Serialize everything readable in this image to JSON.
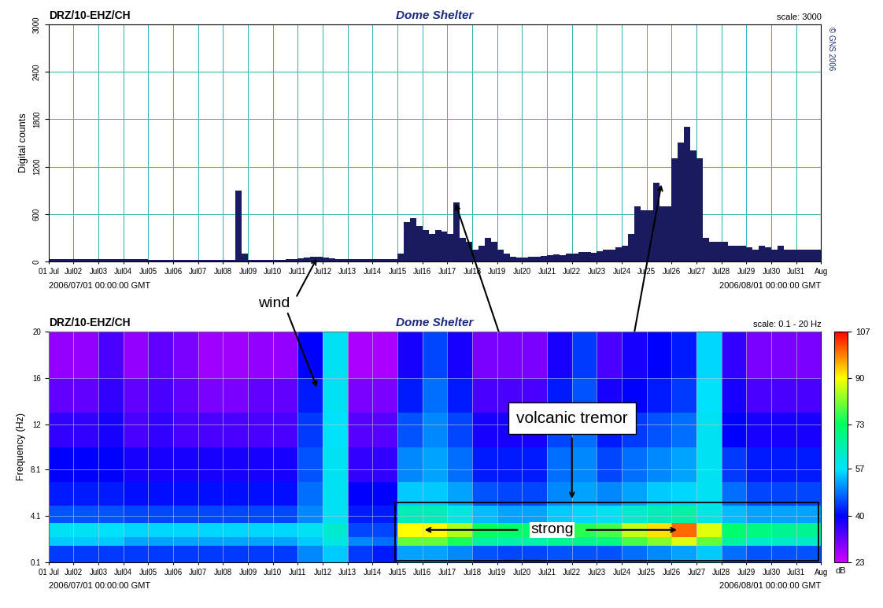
{
  "chart_data": [
    {
      "type": "bar",
      "station": "DRZ/10-EHZ/CH",
      "title": "Dome Shelter",
      "scale_label": "scale: 3000",
      "copyright": "© GNS 2006",
      "ylabel": "Digital counts",
      "start_label": "2006/07/01 00:00:00 GMT",
      "end_label": "2006/08/01 00:00:00 GMT",
      "color": "#1a1a5e",
      "grid": true,
      "xlim": [
        0,
        31
      ],
      "ylim": [
        0,
        3000
      ],
      "yticks": [
        0,
        600,
        1200,
        1800,
        2400,
        3000
      ],
      "xticks": [
        {
          "value": 0,
          "label": "01 Jul"
        },
        {
          "value": 1,
          "label": "Jul02"
        },
        {
          "value": 2,
          "label": "Jul03"
        },
        {
          "value": 3,
          "label": "Jul04"
        },
        {
          "value": 4,
          "label": "Jul05"
        },
        {
          "value": 5,
          "label": "Jul06"
        },
        {
          "value": 6,
          "label": "Jul07"
        },
        {
          "value": 7,
          "label": "Jul08"
        },
        {
          "value": 8,
          "label": "Jul09"
        },
        {
          "value": 9,
          "label": "Jul10"
        },
        {
          "value": 10,
          "label": "Jul11"
        },
        {
          "value": 11,
          "label": "Jul12"
        },
        {
          "value": 12,
          "label": "Jul13"
        },
        {
          "value": 13,
          "label": "Jul14"
        },
        {
          "value": 14,
          "label": "Jul15"
        },
        {
          "value": 15,
          "label": "Jul16"
        },
        {
          "value": 16,
          "label": "Jul17"
        },
        {
          "value": 17,
          "label": "Jul18"
        },
        {
          "value": 18,
          "label": "Jul19"
        },
        {
          "value": 19,
          "label": "Jul20"
        },
        {
          "value": 20,
          "label": "Jul21"
        },
        {
          "value": 21,
          "label": "Jul22"
        },
        {
          "value": 22,
          "label": "Jul23"
        },
        {
          "value": 23,
          "label": "Jul24"
        },
        {
          "value": 24,
          "label": "Jul25"
        },
        {
          "value": 25,
          "label": "Jul26"
        },
        {
          "value": 26,
          "label": "Jul27"
        },
        {
          "value": 27,
          "label": "Jul28"
        },
        {
          "value": 28,
          "label": "Jul29"
        },
        {
          "value": 29,
          "label": "Jul30"
        },
        {
          "value": 30,
          "label": "Jul31"
        },
        {
          "value": 31,
          "label": "Aug"
        }
      ],
      "x": [
        0,
        0.25,
        0.5,
        0.75,
        1,
        1.25,
        1.5,
        1.75,
        2,
        2.25,
        2.5,
        2.75,
        3,
        3.25,
        3.5,
        3.75,
        4,
        4.25,
        4.5,
        4.75,
        5,
        5.25,
        5.5,
        5.75,
        6,
        6.25,
        6.5,
        6.75,
        7,
        7.25,
        7.5,
        7.75,
        8,
        8.25,
        8.5,
        8.75,
        9,
        9.25,
        9.5,
        9.75,
        10,
        10.25,
        10.5,
        10.75,
        11,
        11.25,
        11.5,
        11.75,
        12,
        12.25,
        12.5,
        12.75,
        13,
        13.25,
        13.5,
        13.75,
        14,
        14.25,
        14.5,
        14.75,
        15,
        15.25,
        15.5,
        15.75,
        16,
        16.25,
        16.5,
        16.75,
        17,
        17.25,
        17.5,
        17.75,
        18,
        18.25,
        18.5,
        18.75,
        19,
        19.25,
        19.5,
        19.75,
        20,
        20.25,
        20.5,
        20.75,
        21,
        21.25,
        21.5,
        21.75,
        22,
        22.25,
        22.5,
        22.75,
        23,
        23.25,
        23.5,
        23.75,
        24,
        24.25,
        24.5,
        24.75,
        25,
        25.25,
        25.5,
        25.75,
        26,
        26.25,
        26.5,
        26.75,
        27,
        27.25,
        27.5,
        27.75,
        28,
        28.25,
        28.5,
        28.75,
        29,
        29.25,
        29.5,
        29.75,
        30,
        30.25,
        30.5,
        30.75
      ],
      "values": [
        30,
        30,
        30,
        30,
        25,
        25,
        25,
        25,
        25,
        25,
        25,
        25,
        25,
        25,
        25,
        25,
        20,
        20,
        20,
        20,
        20,
        20,
        20,
        20,
        20,
        20,
        20,
        20,
        20,
        20,
        900,
        100,
        20,
        20,
        20,
        20,
        20,
        20,
        25,
        30,
        40,
        50,
        60,
        60,
        50,
        40,
        30,
        30,
        25,
        25,
        25,
        25,
        25,
        25,
        25,
        25,
        100,
        500,
        550,
        450,
        400,
        350,
        400,
        380,
        350,
        750,
        300,
        250,
        150,
        200,
        300,
        250,
        150,
        100,
        60,
        50,
        50,
        60,
        60,
        70,
        80,
        90,
        80,
        100,
        100,
        120,
        120,
        110,
        130,
        150,
        150,
        180,
        200,
        350,
        700,
        650,
        650,
        1000,
        700,
        700,
        1300,
        1500,
        1700,
        1400,
        1300,
        300,
        250,
        250,
        250,
        200,
        200,
        200,
        180,
        150,
        200,
        180,
        150,
        200,
        150,
        150,
        150,
        150,
        150,
        150
      ]
    },
    {
      "type": "heatmap",
      "station": "DRZ/10-EHZ/CH",
      "title": "Dome Shelter",
      "scale_label": "scale: 0.1 - 20 Hz",
      "ylabel": "Frequency (Hz)",
      "start_label": "2006/07/01 00:00:00 GMT",
      "end_label": "2006/08/01 00:00:00 GMT",
      "grid": true,
      "xlim": [
        0,
        31
      ],
      "ylim": [
        0.1,
        20
      ],
      "yticks": [
        0.1,
        4.1,
        8.1,
        12,
        16,
        20
      ],
      "xticks": [
        {
          "value": 0,
          "label": "01 Jul"
        },
        {
          "value": 1,
          "label": "Jul02"
        },
        {
          "value": 2,
          "label": "Jul03"
        },
        {
          "value": 3,
          "label": "Jul04"
        },
        {
          "value": 4,
          "label": "Jul05"
        },
        {
          "value": 5,
          "label": "Jul06"
        },
        {
          "value": 6,
          "label": "Jul07"
        },
        {
          "value": 7,
          "label": "Jul08"
        },
        {
          "value": 8,
          "label": "Jul09"
        },
        {
          "value": 9,
          "label": "Jul10"
        },
        {
          "value": 10,
          "label": "Jul11"
        },
        {
          "value": 11,
          "label": "Jul12"
        },
        {
          "value": 12,
          "label": "Jul13"
        },
        {
          "value": 13,
          "label": "Jul14"
        },
        {
          "value": 14,
          "label": "Jul15"
        },
        {
          "value": 15,
          "label": "Jul16"
        },
        {
          "value": 16,
          "label": "Jul17"
        },
        {
          "value": 17,
          "label": "Jul18"
        },
        {
          "value": 18,
          "label": "Jul19"
        },
        {
          "value": 19,
          "label": "Jul20"
        },
        {
          "value": 20,
          "label": "Jul21"
        },
        {
          "value": 21,
          "label": "Jul22"
        },
        {
          "value": 22,
          "label": "Jul23"
        },
        {
          "value": 23,
          "label": "Jul24"
        },
        {
          "value": 24,
          "label": "Jul25"
        },
        {
          "value": 25,
          "label": "Jul26"
        },
        {
          "value": 26,
          "label": "Jul27"
        },
        {
          "value": 27,
          "label": "Jul28"
        },
        {
          "value": 28,
          "label": "Jul29"
        },
        {
          "value": 29,
          "label": "Jul30"
        },
        {
          "value": 30,
          "label": "Jul31"
        },
        {
          "value": 31,
          "label": "Aug"
        }
      ],
      "x_edges": [
        0,
        1,
        2,
        3,
        4,
        5,
        6,
        7,
        8,
        9,
        10,
        11,
        12,
        13,
        14,
        15,
        16,
        17,
        18,
        19,
        20,
        21,
        22,
        23,
        24,
        25,
        26,
        27,
        28,
        29,
        30,
        31
      ],
      "y_edges": [
        0.1,
        1.5,
        2.3,
        3.5,
        5,
        7,
        10,
        13,
        16,
        20
      ],
      "cells": [
        [
          44,
          44,
          44,
          44,
          44,
          44,
          44,
          44,
          44,
          44,
          50,
          55,
          44,
          42,
          52,
          52,
          50,
          46,
          45,
          45,
          46,
          46,
          46,
          48,
          50,
          52,
          55,
          48,
          46,
          46,
          46
        ],
        [
          55,
          55,
          55,
          52,
          52,
          52,
          52,
          52,
          52,
          52,
          55,
          60,
          50,
          48,
          80,
          80,
          75,
          66,
          65,
          65,
          68,
          68,
          70,
          78,
          82,
          88,
          80,
          66,
          62,
          62,
          62
        ],
        [
          58,
          58,
          57,
          56,
          56,
          56,
          56,
          56,
          56,
          56,
          58,
          62,
          45,
          45,
          90,
          90,
          85,
          74,
          72,
          72,
          75,
          76,
          78,
          86,
          92,
          100,
          88,
          72,
          70,
          68,
          68
        ],
        [
          46,
          46,
          46,
          45,
          45,
          45,
          45,
          45,
          45,
          45,
          50,
          58,
          42,
          42,
          64,
          64,
          60,
          54,
          52,
          52,
          55,
          56,
          58,
          62,
          64,
          66,
          60,
          54,
          52,
          52,
          52
        ],
        [
          42,
          42,
          42,
          41,
          41,
          41,
          41,
          41,
          41,
          41,
          48,
          58,
          40,
          40,
          55,
          55,
          52,
          46,
          45,
          45,
          50,
          52,
          50,
          52,
          55,
          56,
          58,
          48,
          45,
          45,
          45
        ],
        [
          40,
          40,
          40,
          38,
          38,
          38,
          38,
          38,
          38,
          38,
          46,
          58,
          36,
          36,
          50,
          52,
          48,
          42,
          42,
          42,
          48,
          50,
          45,
          48,
          50,
          52,
          58,
          44,
          42,
          42,
          42
        ],
        [
          36,
          36,
          38,
          34,
          36,
          34,
          34,
          34,
          34,
          34,
          44,
          57,
          33,
          33,
          46,
          50,
          45,
          38,
          38,
          38,
          45,
          48,
          42,
          44,
          46,
          48,
          58,
          40,
          38,
          38,
          38
        ],
        [
          32,
          32,
          36,
          32,
          34,
          32,
          30,
          30,
          32,
          32,
          42,
          58,
          30,
          30,
          42,
          48,
          42,
          34,
          34,
          34,
          42,
          46,
          38,
          40,
          42,
          44,
          57,
          38,
          34,
          34,
          34
        ],
        [
          28,
          28,
          34,
          28,
          32,
          30,
          27,
          27,
          28,
          28,
          40,
          58,
          26,
          26,
          38,
          45,
          38,
          30,
          30,
          30,
          38,
          44,
          34,
          38,
          40,
          42,
          56,
          36,
          30,
          30,
          30
        ]
      ],
      "colorbar": {
        "range": [
          23,
          107
        ],
        "ticks": [
          23,
          40,
          57,
          73,
          90,
          107
        ],
        "label": "dB"
      },
      "annotations": [
        "wind",
        "volcanic tremor",
        "strong"
      ]
    }
  ]
}
